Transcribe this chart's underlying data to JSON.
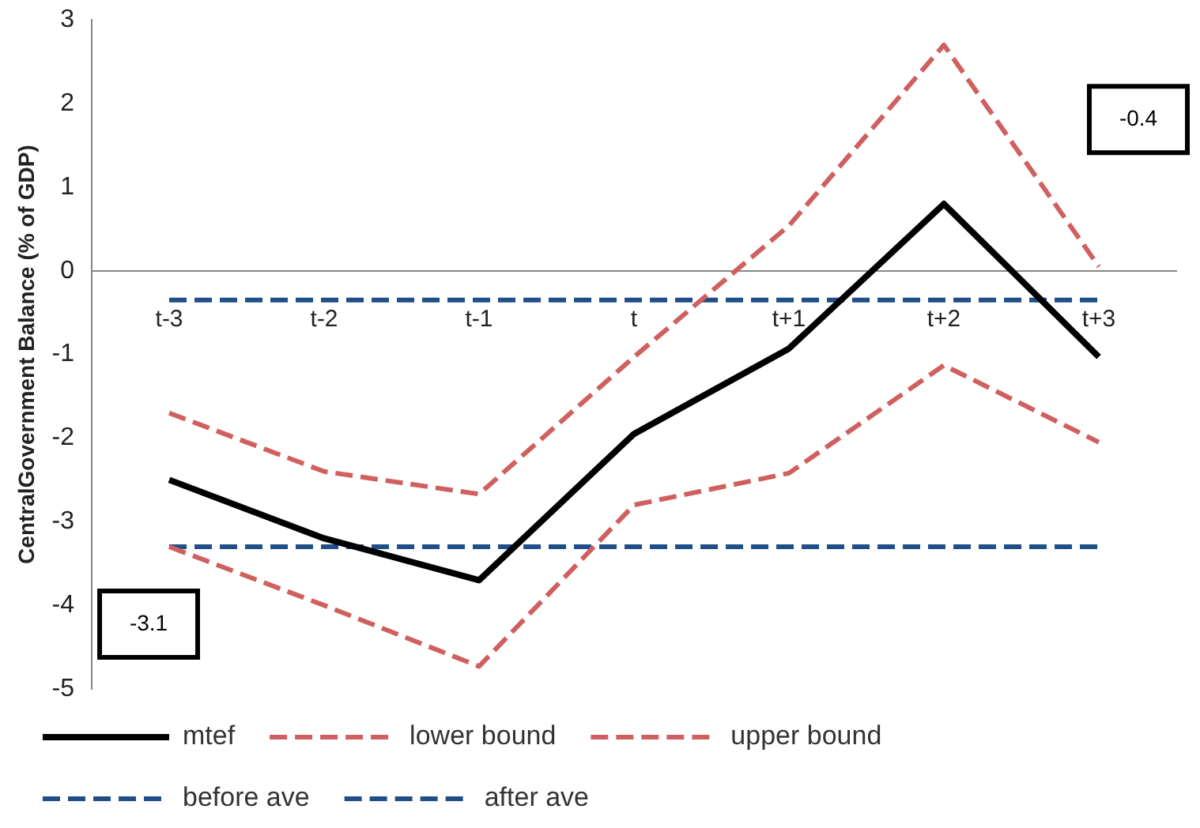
{
  "chart_data": {
    "type": "line",
    "ylabel": "CentralGovernment Balance (% of GDP)",
    "categories": [
      "t-3",
      "t-2",
      "t-1",
      "t",
      "t+1",
      "t+2",
      "t+3"
    ],
    "series": [
      {
        "name": "mtef",
        "color": "#000000",
        "values": [
          -2.5,
          -3.2,
          -3.7,
          -1.95,
          -0.93,
          0.8,
          -1.03
        ],
        "line_style": "solid"
      },
      {
        "name": "lower bound",
        "color": "#d06060",
        "values": [
          -3.3,
          -4.0,
          -4.73,
          -2.8,
          -2.42,
          -1.13,
          -2.05
        ],
        "line_style": "dashed"
      },
      {
        "name": "upper bound",
        "color": "#d06060",
        "values": [
          -1.7,
          -2.4,
          -2.67,
          -1.03,
          0.54,
          2.7,
          0.05
        ],
        "line_style": "dashed"
      },
      {
        "name": "before ave",
        "color": "#1f4e89",
        "values": [
          -3.3,
          -3.3,
          -3.3,
          -3.3,
          -3.3,
          -3.3,
          -3.3
        ],
        "line_style": "dashed"
      },
      {
        "name": "after ave",
        "color": "#1f4e89",
        "values": [
          -0.35,
          -0.35,
          -0.35,
          -0.35,
          -0.35,
          -0.35,
          -0.35
        ],
        "line_style": "dashed"
      }
    ],
    "ylim": [
      -5,
      3
    ],
    "yticks": [
      -5,
      -4,
      -3,
      -2,
      -1,
      0,
      1,
      2,
      3
    ],
    "grid": false,
    "legend": "bottom",
    "marker": "none",
    "annotations": [
      "-3.1",
      "-0.4"
    ]
  }
}
